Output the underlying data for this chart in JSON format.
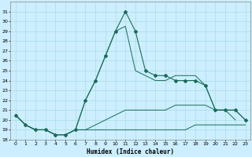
{
  "xlabel": "Humidex (Indice chaleur)",
  "ylabel": "",
  "xlim": [
    -0.5,
    23.5
  ],
  "ylim": [
    18,
    32
  ],
  "yticks": [
    18,
    19,
    20,
    21,
    22,
    23,
    24,
    25,
    26,
    27,
    28,
    29,
    30,
    31
  ],
  "xticks": [
    0,
    1,
    2,
    3,
    4,
    5,
    6,
    7,
    8,
    9,
    10,
    11,
    12,
    13,
    14,
    15,
    16,
    17,
    18,
    19,
    20,
    21,
    22,
    23
  ],
  "background_color": "#cceeff",
  "grid_color": "#aadddd",
  "line_color": "#1a6b5a",
  "lines": [
    {
      "x": [
        0,
        1,
        2,
        3,
        4,
        5,
        6,
        7,
        8,
        9,
        10,
        11,
        12,
        13,
        14,
        15,
        16,
        17,
        18,
        19,
        20,
        21,
        22,
        23
      ],
      "y": [
        20.5,
        19.5,
        19.0,
        19.0,
        18.5,
        18.5,
        19.0,
        19.0,
        19.0,
        19.0,
        19.0,
        19.0,
        19.0,
        19.0,
        19.0,
        19.0,
        19.0,
        19.0,
        19.5,
        19.5,
        19.5,
        19.5,
        19.5,
        19.5
      ],
      "marker": false
    },
    {
      "x": [
        0,
        1,
        2,
        3,
        4,
        5,
        6,
        7,
        8,
        9,
        10,
        11,
        12,
        13,
        14,
        15,
        16,
        17,
        18,
        19,
        20,
        21,
        22,
        23
      ],
      "y": [
        20.5,
        19.5,
        19.0,
        19.0,
        18.5,
        18.5,
        19.0,
        19.0,
        19.5,
        20.0,
        20.5,
        21.0,
        21.0,
        21.0,
        21.0,
        21.0,
        21.5,
        21.5,
        21.5,
        21.5,
        21.0,
        21.0,
        21.0,
        20.0
      ],
      "marker": false
    },
    {
      "x": [
        0,
        1,
        2,
        3,
        4,
        5,
        6,
        7,
        8,
        9,
        10,
        11,
        12,
        13,
        14,
        15,
        16,
        17,
        18,
        19,
        20,
        21,
        22,
        23
      ],
      "y": [
        20.5,
        19.5,
        19.0,
        19.0,
        18.5,
        18.5,
        19.0,
        22.0,
        24.0,
        26.5,
        29.0,
        29.5,
        25.0,
        24.5,
        24.0,
        24.0,
        24.5,
        24.5,
        24.5,
        23.5,
        21.0,
        21.0,
        20.0,
        null
      ],
      "marker": false
    },
    {
      "x": [
        0,
        1,
        2,
        3,
        4,
        5,
        6,
        7,
        8,
        9,
        10,
        11,
        12,
        13,
        14,
        15,
        16,
        17,
        18,
        19,
        20,
        21,
        22,
        23
      ],
      "y": [
        20.5,
        19.5,
        19.0,
        19.0,
        18.5,
        18.5,
        19.0,
        22.0,
        24.0,
        26.5,
        29.0,
        31.0,
        29.0,
        25.0,
        24.5,
        24.5,
        24.0,
        24.0,
        24.0,
        23.5,
        21.0,
        21.0,
        21.0,
        20.0
      ],
      "marker": true
    }
  ]
}
